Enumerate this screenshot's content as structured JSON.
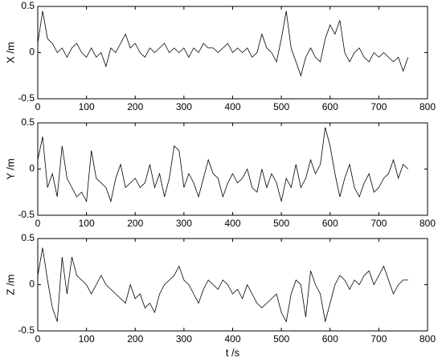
{
  "chart_data": [
    {
      "type": "line",
      "ylabel": "X /m",
      "color": "#000000",
      "x": [
        0,
        10,
        20,
        30,
        40,
        50,
        60,
        70,
        80,
        90,
        100,
        110,
        120,
        130,
        140,
        150,
        160,
        170,
        180,
        190,
        200,
        210,
        220,
        230,
        240,
        250,
        260,
        270,
        280,
        290,
        300,
        310,
        320,
        330,
        340,
        350,
        360,
        370,
        380,
        390,
        400,
        410,
        420,
        430,
        440,
        450,
        460,
        470,
        480,
        490,
        500,
        510,
        520,
        530,
        540,
        550,
        560,
        570,
        580,
        590,
        600,
        610,
        620,
        630,
        640,
        650,
        660,
        670,
        680,
        690,
        700,
        710,
        720,
        730,
        740,
        750,
        760
      ],
      "values": [
        0.1,
        0.45,
        0.15,
        0.1,
        0.0,
        0.05,
        -0.05,
        0.05,
        0.1,
        0.0,
        -0.05,
        0.05,
        -0.05,
        0.0,
        -0.15,
        0.05,
        0.0,
        0.1,
        0.2,
        0.05,
        0.1,
        0.0,
        -0.05,
        0.05,
        0.0,
        0.05,
        0.1,
        0.0,
        0.05,
        0.0,
        0.05,
        -0.05,
        0.05,
        0.0,
        0.1,
        0.05,
        0.05,
        0.0,
        0.05,
        0.1,
        0.0,
        0.05,
        0.0,
        0.05,
        -0.05,
        0.0,
        0.2,
        0.05,
        0.0,
        -0.1,
        0.15,
        0.45,
        0.05,
        -0.1,
        -0.25,
        -0.05,
        0.05,
        -0.05,
        -0.1,
        0.15,
        0.3,
        0.2,
        0.35,
        0.0,
        -0.1,
        0.0,
        0.05,
        -0.05,
        -0.1,
        0.0,
        -0.05,
        0.0,
        -0.05,
        -0.1,
        -0.05,
        -0.2,
        -0.05
      ],
      "xlim": [
        0,
        800
      ],
      "xticks": [
        0,
        100,
        200,
        300,
        400,
        500,
        600,
        700,
        800
      ],
      "ylim": [
        -0.5,
        0.5
      ],
      "yticks": [
        -0.5,
        0,
        0.5
      ]
    },
    {
      "type": "line",
      "ylabel": "Y /m",
      "color": "#000000",
      "x": [
        0,
        10,
        20,
        30,
        40,
        50,
        60,
        70,
        80,
        90,
        100,
        110,
        120,
        130,
        140,
        150,
        160,
        170,
        180,
        190,
        200,
        210,
        220,
        230,
        240,
        250,
        260,
        270,
        280,
        290,
        300,
        310,
        320,
        330,
        340,
        350,
        360,
        370,
        380,
        390,
        400,
        410,
        420,
        430,
        440,
        450,
        460,
        470,
        480,
        490,
        500,
        510,
        520,
        530,
        540,
        550,
        560,
        570,
        580,
        590,
        600,
        610,
        620,
        630,
        640,
        650,
        660,
        670,
        680,
        690,
        700,
        710,
        720,
        730,
        740,
        750,
        760
      ],
      "values": [
        0.1,
        0.35,
        -0.2,
        -0.05,
        -0.3,
        0.25,
        -0.1,
        -0.2,
        -0.3,
        -0.25,
        -0.35,
        0.2,
        -0.1,
        -0.15,
        -0.2,
        -0.35,
        -0.1,
        0.05,
        -0.2,
        -0.15,
        -0.1,
        -0.2,
        -0.15,
        0.05,
        -0.2,
        -0.05,
        -0.3,
        -0.1,
        0.25,
        0.2,
        -0.2,
        -0.05,
        -0.15,
        -0.3,
        -0.1,
        0.1,
        -0.05,
        -0.1,
        -0.3,
        -0.15,
        -0.05,
        -0.15,
        -0.1,
        0.0,
        -0.2,
        -0.25,
        0.0,
        -0.2,
        -0.05,
        -0.15,
        -0.35,
        -0.1,
        -0.2,
        0.05,
        -0.2,
        -0.1,
        0.1,
        -0.05,
        0.05,
        0.45,
        0.25,
        -0.05,
        -0.3,
        -0.1,
        0.05,
        -0.2,
        -0.3,
        -0.15,
        -0.05,
        -0.25,
        -0.2,
        -0.1,
        -0.05,
        0.1,
        -0.1,
        0.05,
        0.0
      ],
      "xlim": [
        0,
        800
      ],
      "xticks": [
        0,
        100,
        200,
        300,
        400,
        500,
        600,
        700,
        800
      ],
      "ylim": [
        -0.5,
        0.5
      ],
      "yticks": [
        -0.5,
        0,
        0.5
      ]
    },
    {
      "type": "line",
      "ylabel": "Z /m",
      "xlabel": "t /s",
      "color": "#000000",
      "x": [
        0,
        10,
        20,
        30,
        40,
        50,
        60,
        70,
        80,
        90,
        100,
        110,
        120,
        130,
        140,
        150,
        160,
        170,
        180,
        190,
        200,
        210,
        220,
        230,
        240,
        250,
        260,
        270,
        280,
        290,
        300,
        310,
        320,
        330,
        340,
        350,
        360,
        370,
        380,
        390,
        400,
        410,
        420,
        430,
        440,
        450,
        460,
        470,
        480,
        490,
        500,
        510,
        520,
        530,
        540,
        550,
        560,
        570,
        580,
        590,
        600,
        610,
        620,
        630,
        640,
        650,
        660,
        670,
        680,
        690,
        700,
        710,
        720,
        730,
        740,
        750,
        760
      ],
      "values": [
        0.1,
        0.4,
        0.05,
        -0.25,
        -0.4,
        0.3,
        -0.1,
        0.3,
        0.1,
        0.05,
        0.0,
        -0.1,
        0.0,
        0.1,
        0.0,
        -0.05,
        -0.1,
        -0.15,
        -0.2,
        0.0,
        -0.15,
        -0.1,
        -0.25,
        -0.2,
        -0.3,
        -0.1,
        0.0,
        0.05,
        0.1,
        0.2,
        0.05,
        0.0,
        -0.1,
        -0.2,
        -0.05,
        0.05,
        0.0,
        -0.05,
        0.05,
        0.0,
        -0.1,
        -0.05,
        -0.15,
        0.0,
        -0.1,
        -0.2,
        -0.25,
        -0.2,
        -0.15,
        -0.1,
        -0.3,
        -0.4,
        -0.1,
        0.05,
        0.0,
        -0.35,
        0.15,
        0.0,
        -0.1,
        -0.4,
        -0.2,
        0.0,
        0.1,
        0.05,
        -0.05,
        0.05,
        0.0,
        0.1,
        0.15,
        0.0,
        0.1,
        0.2,
        0.05,
        -0.1,
        0.0,
        0.05,
        0.05
      ],
      "xlim": [
        0,
        800
      ],
      "xticks": [
        0,
        100,
        200,
        300,
        400,
        500,
        600,
        700,
        800
      ],
      "ylim": [
        -0.5,
        0.5
      ],
      "yticks": [
        -0.5,
        0,
        0.5
      ]
    }
  ]
}
